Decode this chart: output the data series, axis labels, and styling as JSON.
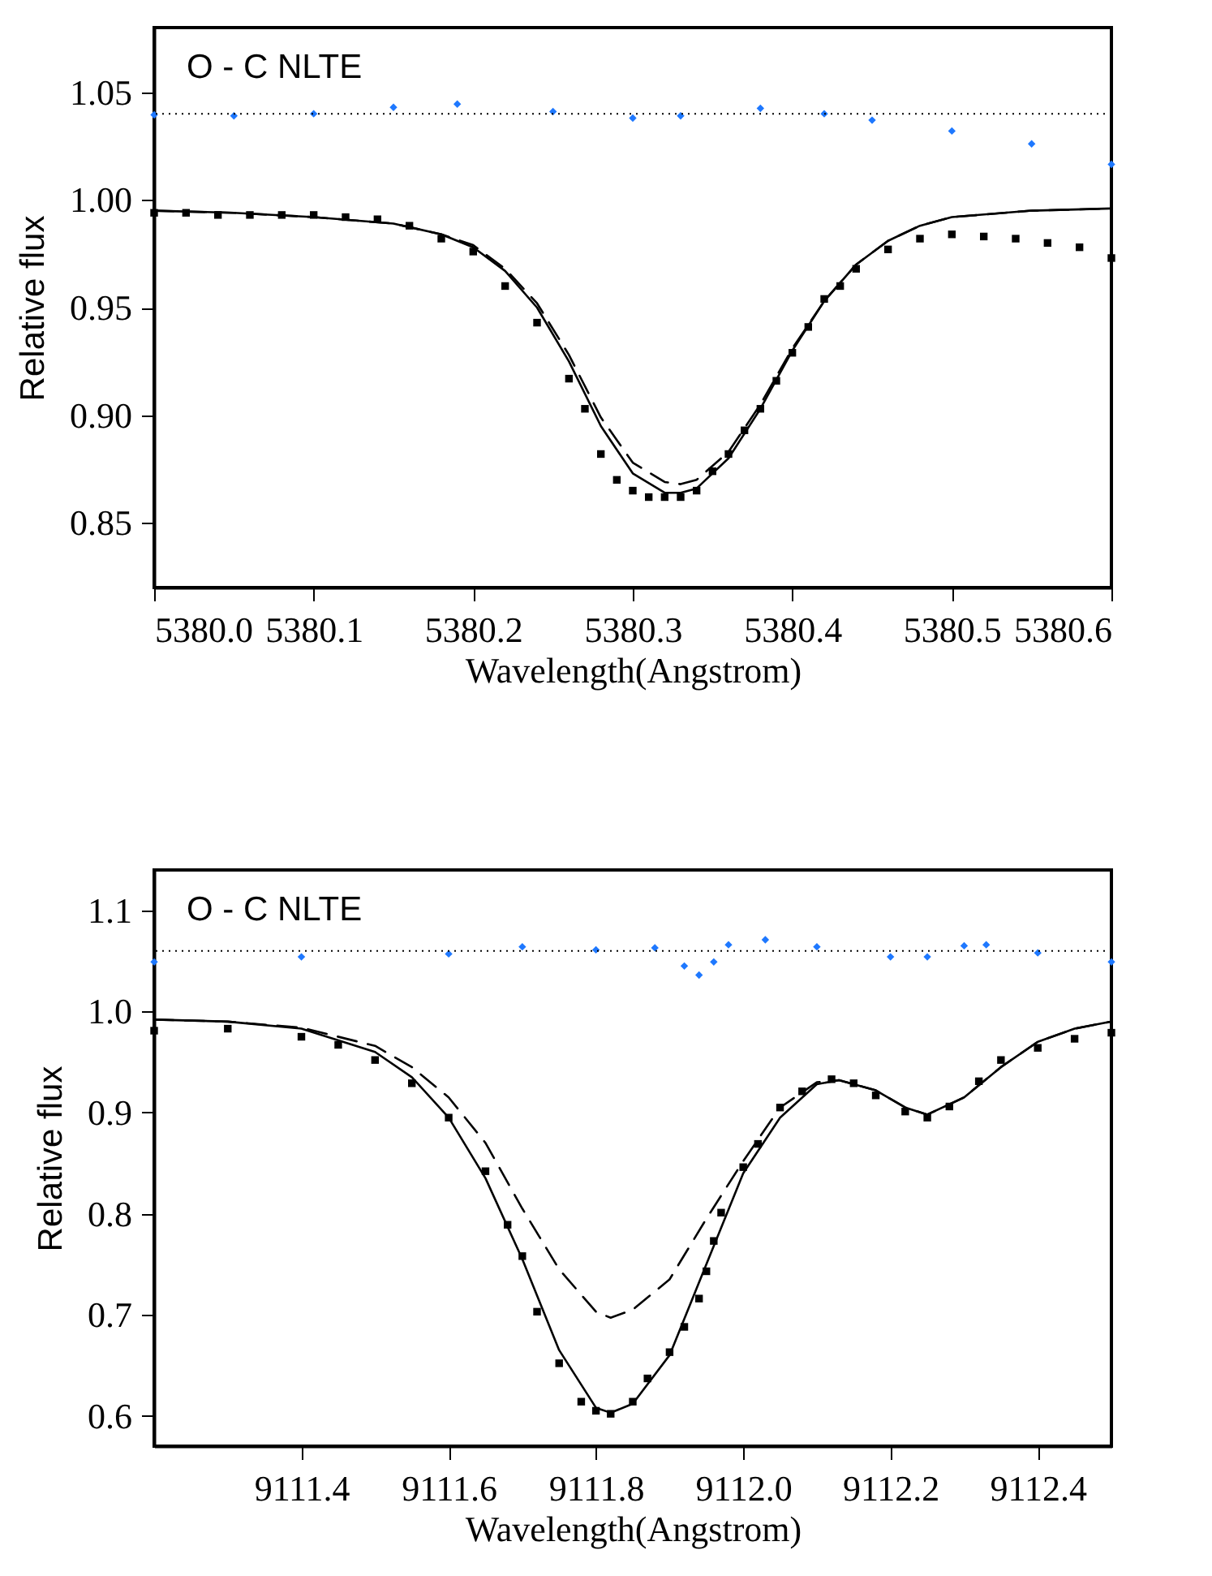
{
  "chart_data": [
    {
      "type": "line",
      "xlabel": "Wavelength(Angstrom)",
      "ylabel": "Relative flux",
      "annotations": [
        "O - C   NLTE"
      ],
      "xlim": [
        5380.0,
        5380.6
      ],
      "ylim": [
        0.82,
        1.08
      ],
      "xticks": [
        {
          "value": 5380.0,
          "label": "5380.0"
        },
        {
          "value": 5380.1,
          "label": "5380.1"
        },
        {
          "value": 5380.2,
          "label": "5380.2"
        },
        {
          "value": 5380.3,
          "label": "5380.3"
        },
        {
          "value": 5380.4,
          "label": "5380.4"
        },
        {
          "value": 5380.5,
          "label": "5380.5"
        },
        {
          "value": 5380.6,
          "label": "5380.6"
        }
      ],
      "yticks": [
        {
          "value": 0.85,
          "label": "0.85"
        },
        {
          "value": 0.9,
          "label": "0.90"
        },
        {
          "value": 0.95,
          "label": "0.95"
        },
        {
          "value": 1.0,
          "label": "1.00"
        },
        {
          "value": 1.05,
          "label": "1.05"
        }
      ],
      "ref_lines": [
        {
          "axis": "y",
          "value": 1.04,
          "color": "#000000",
          "line_style": "dotted"
        }
      ],
      "series": [
        {
          "type": "scatter",
          "marker": "square",
          "color": "#000000",
          "x": [
            5380.0,
            5380.02,
            5380.04,
            5380.06,
            5380.08,
            5380.1,
            5380.12,
            5380.14,
            5380.16,
            5380.18,
            5380.2,
            5380.22,
            5380.24,
            5380.26,
            5380.27,
            5380.28,
            5380.29,
            5380.3,
            5380.31,
            5380.32,
            5380.33,
            5380.34,
            5380.35,
            5380.36,
            5380.37,
            5380.38,
            5380.39,
            5380.4,
            5380.41,
            5380.42,
            5380.43,
            5380.44,
            5380.46,
            5380.48,
            5380.5,
            5380.52,
            5380.54,
            5380.56,
            5380.58,
            5380.6
          ],
          "values": [
            0.994,
            0.994,
            0.993,
            0.993,
            0.993,
            0.993,
            0.992,
            0.991,
            0.988,
            0.982,
            0.976,
            0.96,
            0.943,
            0.917,
            0.903,
            0.882,
            0.87,
            0.865,
            0.862,
            0.862,
            0.862,
            0.865,
            0.874,
            0.882,
            0.893,
            0.903,
            0.916,
            0.929,
            0.941,
            0.954,
            0.96,
            0.968,
            0.977,
            0.982,
            0.984,
            0.983,
            0.982,
            0.98,
            0.978,
            0.973
          ]
        },
        {
          "type": "line",
          "line_style": "solid",
          "color": "#000000",
          "x": [
            5380.0,
            5380.05,
            5380.1,
            5380.15,
            5380.18,
            5380.2,
            5380.22,
            5380.24,
            5380.26,
            5380.28,
            5380.3,
            5380.32,
            5380.33,
            5380.34,
            5380.36,
            5380.38,
            5380.4,
            5380.42,
            5380.44,
            5380.46,
            5380.48,
            5380.5,
            5380.55,
            5380.6
          ],
          "values": [
            0.995,
            0.994,
            0.992,
            0.989,
            0.984,
            0.978,
            0.967,
            0.95,
            0.925,
            0.895,
            0.873,
            0.864,
            0.864,
            0.866,
            0.88,
            0.903,
            0.93,
            0.953,
            0.97,
            0.981,
            0.988,
            0.992,
            0.995,
            0.996
          ]
        },
        {
          "type": "line",
          "line_style": "dashed",
          "color": "#000000",
          "x": [
            5380.0,
            5380.05,
            5380.1,
            5380.15,
            5380.18,
            5380.2,
            5380.22,
            5380.24,
            5380.26,
            5380.28,
            5380.3,
            5380.32,
            5380.33,
            5380.34,
            5380.36,
            5380.38,
            5380.4,
            5380.42,
            5380.44,
            5380.46,
            5380.48,
            5380.5,
            5380.55,
            5380.6
          ],
          "values": [
            0.995,
            0.994,
            0.992,
            0.989,
            0.984,
            0.979,
            0.968,
            0.952,
            0.928,
            0.899,
            0.878,
            0.869,
            0.868,
            0.87,
            0.883,
            0.905,
            0.931,
            0.953,
            0.97,
            0.981,
            0.988,
            0.992,
            0.995,
            0.996
          ]
        },
        {
          "type": "scatter",
          "marker": "diamond",
          "color": "#1e78ff",
          "x": [
            5380.0,
            5380.05,
            5380.1,
            5380.15,
            5380.19,
            5380.25,
            5380.3,
            5380.33,
            5380.38,
            5380.42,
            5380.45,
            5380.5,
            5380.55,
            5380.6
          ],
          "values": [
            1.0395,
            1.039,
            1.04,
            1.043,
            1.0445,
            1.041,
            1.038,
            1.039,
            1.0425,
            1.04,
            1.037,
            1.032,
            1.026,
            1.0165
          ]
        }
      ]
    },
    {
      "type": "line",
      "xlabel": "Wavelength(Angstrom)",
      "ylabel": "Relative flux",
      "annotations": [
        "O - C   NLTE"
      ],
      "xlim": [
        9111.2,
        9112.5
      ],
      "ylim": [
        0.57,
        1.14
      ],
      "xticks": [
        {
          "value": 9111.4,
          "label": "9111.4"
        },
        {
          "value": 9111.6,
          "label": "9111.6"
        },
        {
          "value": 9111.8,
          "label": "9111.8"
        },
        {
          "value": 9112.0,
          "label": "9112.0"
        },
        {
          "value": 9112.2,
          "label": "9112.2"
        },
        {
          "value": 9112.4,
          "label": "9112.4"
        }
      ],
      "yticks": [
        {
          "value": 0.6,
          "label": "0.6"
        },
        {
          "value": 0.7,
          "label": "0.7"
        },
        {
          "value": 0.8,
          "label": "0.8"
        },
        {
          "value": 0.9,
          "label": "0.9"
        },
        {
          "value": 1.0,
          "label": "1.0"
        },
        {
          "value": 1.1,
          "label": "1.1"
        }
      ],
      "ref_lines": [
        {
          "axis": "y",
          "value": 1.06,
          "color": "#000000",
          "line_style": "dotted"
        }
      ],
      "series": [
        {
          "type": "scatter",
          "marker": "square",
          "color": "#000000",
          "x": [
            9111.2,
            9111.3,
            9111.4,
            9111.45,
            9111.5,
            9111.55,
            9111.6,
            9111.65,
            9111.68,
            9111.7,
            9111.72,
            9111.75,
            9111.78,
            9111.8,
            9111.82,
            9111.85,
            9111.87,
            9111.9,
            9111.92,
            9111.94,
            9111.95,
            9111.96,
            9111.97,
            9112.0,
            9112.02,
            9112.05,
            9112.08,
            9112.12,
            9112.15,
            9112.18,
            9112.22,
            9112.25,
            9112.28,
            9112.32,
            9112.35,
            9112.4,
            9112.45,
            9112.5
          ],
          "values": [
            0.981,
            0.983,
            0.975,
            0.967,
            0.952,
            0.929,
            0.895,
            0.842,
            0.789,
            0.758,
            0.703,
            0.652,
            0.614,
            0.605,
            0.602,
            0.614,
            0.637,
            0.663,
            0.688,
            0.716,
            0.743,
            0.773,
            0.801,
            0.846,
            0.869,
            0.905,
            0.921,
            0.933,
            0.929,
            0.917,
            0.901,
            0.895,
            0.906,
            0.931,
            0.952,
            0.964,
            0.973,
            0.979
          ]
        },
        {
          "type": "line",
          "line_style": "solid",
          "color": "#000000",
          "x": [
            9111.2,
            9111.3,
            9111.4,
            9111.5,
            9111.55,
            9111.6,
            9111.65,
            9111.7,
            9111.75,
            9111.8,
            9111.82,
            9111.85,
            9111.9,
            9111.95,
            9112.0,
            9112.05,
            9112.1,
            9112.13,
            9112.18,
            9112.22,
            9112.25,
            9112.3,
            9112.35,
            9112.4,
            9112.45,
            9112.5
          ],
          "values": [
            0.992,
            0.99,
            0.983,
            0.96,
            0.935,
            0.895,
            0.835,
            0.755,
            0.665,
            0.608,
            0.603,
            0.612,
            0.66,
            0.75,
            0.84,
            0.895,
            0.928,
            0.932,
            0.922,
            0.905,
            0.898,
            0.915,
            0.945,
            0.97,
            0.983,
            0.99
          ]
        },
        {
          "type": "line",
          "line_style": "dashed",
          "color": "#000000",
          "x": [
            9111.2,
            9111.3,
            9111.4,
            9111.5,
            9111.55,
            9111.6,
            9111.65,
            9111.7,
            9111.75,
            9111.8,
            9111.82,
            9111.85,
            9111.9,
            9111.95,
            9112.0,
            9112.05,
            9112.1,
            9112.13,
            9112.18,
            9112.22,
            9112.25,
            9112.3,
            9112.35,
            9112.4,
            9112.45,
            9112.5
          ],
          "values": [
            0.992,
            0.99,
            0.984,
            0.966,
            0.945,
            0.915,
            0.87,
            0.805,
            0.745,
            0.703,
            0.697,
            0.705,
            0.735,
            0.795,
            0.852,
            0.905,
            0.93,
            0.932,
            0.922,
            0.905,
            0.898,
            0.915,
            0.945,
            0.97,
            0.983,
            0.99
          ]
        },
        {
          "type": "scatter",
          "marker": "diamond",
          "color": "#1e78ff",
          "x": [
            9111.2,
            9111.4,
            9111.6,
            9111.7,
            9111.8,
            9111.88,
            9111.92,
            9111.94,
            9111.96,
            9111.98,
            9112.03,
            9112.1,
            9112.2,
            9112.25,
            9112.3,
            9112.33,
            9112.4,
            9112.5
          ],
          "values": [
            1.049,
            1.054,
            1.057,
            1.064,
            1.061,
            1.063,
            1.045,
            1.036,
            1.049,
            1.066,
            1.071,
            1.064,
            1.054,
            1.054,
            1.065,
            1.066,
            1.058,
            1.049
          ]
        }
      ]
    }
  ]
}
